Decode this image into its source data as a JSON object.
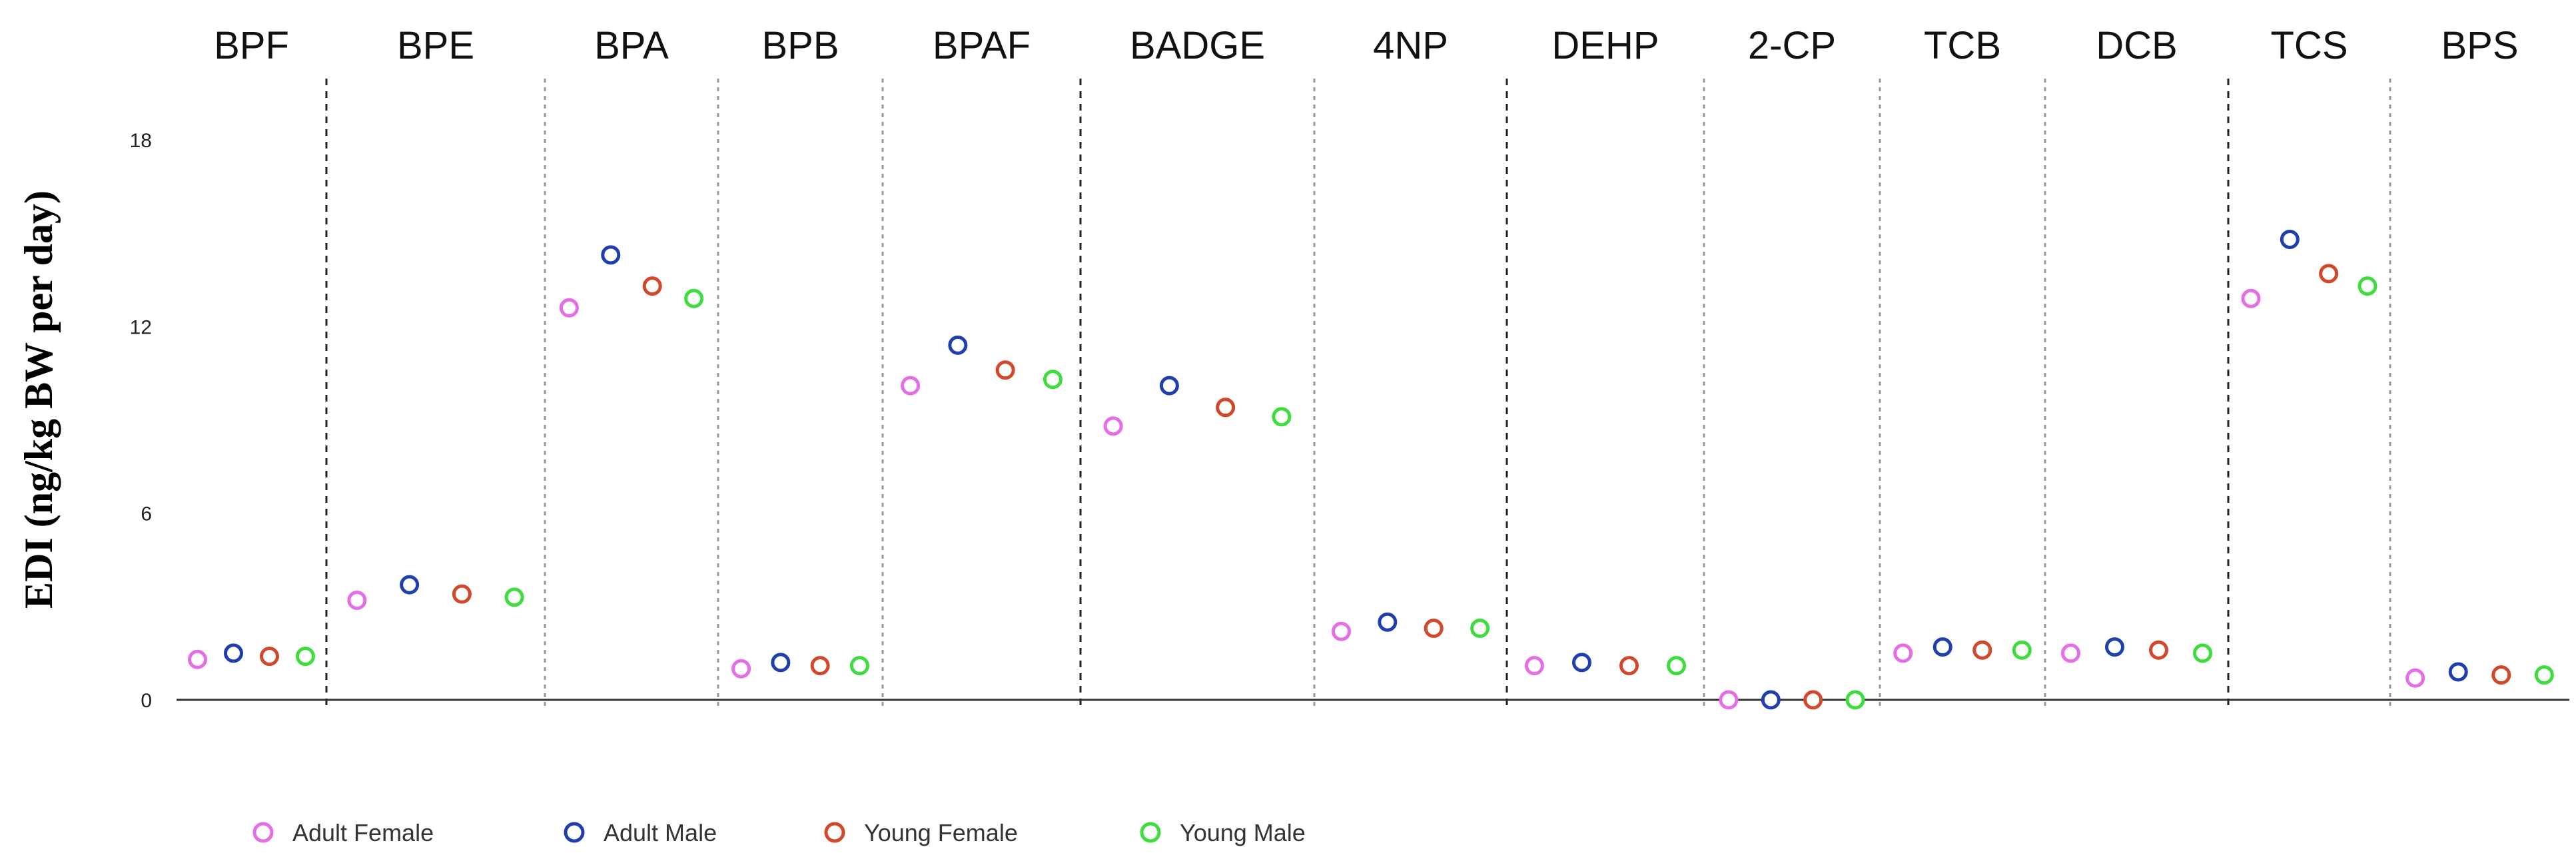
{
  "chart_data": {
    "type": "scatter",
    "ylabel": "EDI (ng/kg BW per day)",
    "xlabel": "",
    "ylim": [
      0,
      18
    ],
    "yticks": [
      0,
      6,
      12,
      18
    ],
    "grid": false,
    "legend_position": "bottom-left",
    "categories": [
      "BPF",
      "BPE",
      "BPA",
      "BPB",
      "BPAF",
      "BADGE",
      "4NP",
      "DEHP",
      "2-CP",
      "TCB",
      "DCB",
      "TCS",
      "BPS"
    ],
    "divider_styles": [
      "dashed",
      "dotted",
      "dotted",
      "dotted",
      "dashed",
      "dotted",
      "dashed",
      "dotted",
      "dotted",
      "dotted",
      "dashed",
      "dotted"
    ],
    "series": [
      {
        "name": "Adult Female",
        "color": "#e46ee6",
        "values": [
          1.3,
          3.2,
          12.6,
          1.0,
          10.1,
          8.8,
          2.2,
          1.1,
          0.0,
          1.5,
          1.5,
          12.9,
          0.7
        ]
      },
      {
        "name": "Adult Male",
        "color": "#1f3fae",
        "values": [
          1.5,
          3.7,
          14.3,
          1.2,
          11.4,
          10.1,
          2.5,
          1.2,
          0.0,
          1.7,
          1.7,
          14.8,
          0.9
        ]
      },
      {
        "name": "Young Female",
        "color": "#d2482b",
        "values": [
          1.4,
          3.4,
          13.3,
          1.1,
          10.6,
          9.4,
          2.3,
          1.1,
          0.0,
          1.6,
          1.6,
          13.7,
          0.8
        ]
      },
      {
        "name": "Young Male",
        "color": "#3ddd3d",
        "values": [
          1.4,
          3.3,
          12.9,
          1.1,
          10.3,
          9.1,
          2.3,
          1.1,
          0.0,
          1.6,
          1.5,
          13.3,
          0.8
        ]
      }
    ]
  }
}
